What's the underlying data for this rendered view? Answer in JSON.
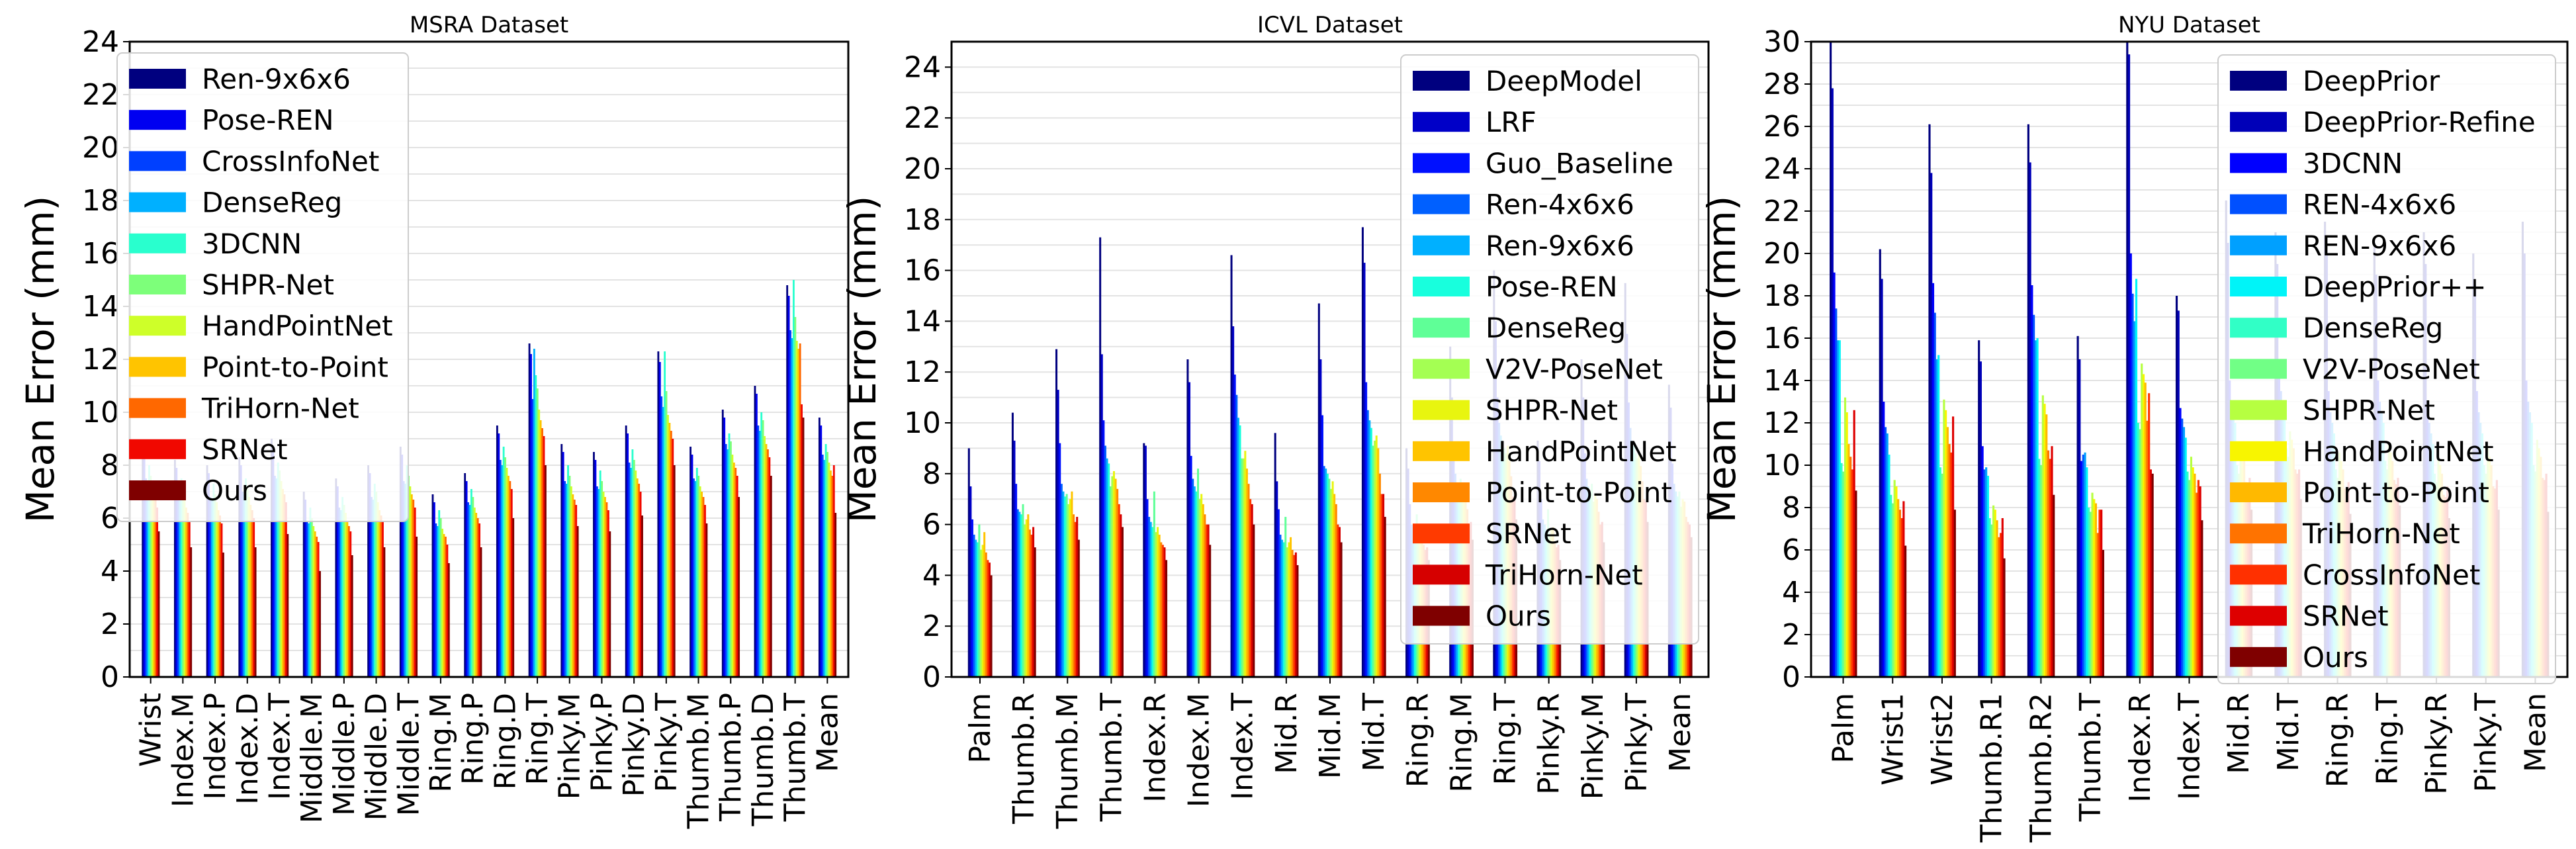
{
  "chart_data": [
    {
      "type": "bar",
      "title": "MSRA Dataset",
      "xlabel": "",
      "ylabel": "Mean Error (mm)",
      "ylim": [
        0,
        24
      ],
      "yticks": [
        0,
        2,
        4,
        6,
        8,
        10,
        12,
        14,
        16,
        18,
        20,
        22,
        24
      ],
      "grid": true,
      "legend_position": "top-left",
      "categories": [
        "Wrist",
        "Index.M",
        "Index.P",
        "Index.D",
        "Index.T",
        "Middle.M",
        "Middle.P",
        "Middle.D",
        "Middle.T",
        "Ring.M",
        "Ring.P",
        "Ring.D",
        "Ring.T",
        "Pinky.M",
        "Pinky.P",
        "Pinky.D",
        "Pinky.T",
        "Thumb.M",
        "Thumb.P",
        "Thumb.D",
        "Thumb.T",
        "Mean"
      ],
      "series": [
        {
          "name": "Ren-9x6x6",
          "color": "#00007f",
          "values": [
            8.8,
            8.2,
            8.0,
            8.3,
            9.0,
            7.0,
            7.5,
            8.0,
            8.7,
            6.9,
            7.7,
            9.5,
            12.6,
            8.8,
            8.5,
            9.5,
            12.3,
            8.7,
            10.1,
            11.0,
            14.8,
            9.8
          ]
        },
        {
          "name": "Pose-REN",
          "color": "#0000f1",
          "values": [
            8.5,
            7.9,
            7.7,
            8.0,
            8.7,
            6.7,
            7.2,
            7.7,
            8.4,
            6.6,
            7.4,
            9.2,
            12.2,
            8.5,
            8.2,
            9.2,
            11.9,
            8.4,
            9.8,
            10.7,
            14.4,
            9.5
          ]
        },
        {
          "name": "CrossInfoNet",
          "color": "#0040ff",
          "values": [
            7.5,
            7.0,
            6.8,
            7.0,
            7.6,
            5.9,
            6.4,
            6.8,
            7.4,
            5.8,
            6.6,
            8.2,
            10.5,
            7.4,
            7.2,
            8.1,
            10.6,
            7.5,
            8.8,
            9.5,
            13.1,
            8.4
          ]
        },
        {
          "name": "DenseReg",
          "color": "#00b0ff",
          "values": [
            7.3,
            6.8,
            6.7,
            6.9,
            7.5,
            5.8,
            6.3,
            6.7,
            7.3,
            5.7,
            6.5,
            8.0,
            12.4,
            7.3,
            7.1,
            7.9,
            10.2,
            7.4,
            8.6,
            9.3,
            12.8,
            8.2
          ]
        },
        {
          "name": "3DCNN",
          "color": "#29ffce",
          "values": [
            8.0,
            7.5,
            7.3,
            7.5,
            8.1,
            6.4,
            6.8,
            7.3,
            8.0,
            6.3,
            7.1,
            8.7,
            11.4,
            8.0,
            7.8,
            8.6,
            12.3,
            7.9,
            9.2,
            10.0,
            15.0,
            8.8
          ]
        },
        {
          "name": "SHPR-Net",
          "color": "#7dff7a",
          "values": [
            7.6,
            7.1,
            6.9,
            7.1,
            7.8,
            6.0,
            6.5,
            7.0,
            7.6,
            6.0,
            6.8,
            8.3,
            10.9,
            7.6,
            7.4,
            8.2,
            10.8,
            7.6,
            8.9,
            9.7,
            13.6,
            8.5
          ]
        },
        {
          "name": "HandPointNet",
          "color": "#ceff29",
          "values": [
            7.2,
            6.7,
            6.6,
            6.8,
            7.4,
            5.7,
            6.2,
            6.6,
            7.2,
            5.6,
            6.4,
            7.9,
            10.1,
            7.2,
            7.0,
            7.8,
            9.9,
            7.2,
            8.4,
            9.1,
            12.7,
            8.1
          ]
        },
        {
          "name": "Point-to-Point",
          "color": "#ffc400",
          "values": [
            6.9,
            6.4,
            6.3,
            6.5,
            7.1,
            5.5,
            5.9,
            6.3,
            6.9,
            5.4,
            6.2,
            7.6,
            9.7,
            6.9,
            6.8,
            7.5,
            9.6,
            7.0,
            8.1,
            8.8,
            12.4,
            7.8
          ]
        },
        {
          "name": "TriHorn-Net",
          "color": "#ff6800",
          "values": [
            6.7,
            6.2,
            6.1,
            6.3,
            6.9,
            5.3,
            5.7,
            6.1,
            6.7,
            5.3,
            6.0,
            7.4,
            9.4,
            6.7,
            6.6,
            7.3,
            9.3,
            6.8,
            7.9,
            8.6,
            12.6,
            7.6
          ]
        },
        {
          "name": "SRNet",
          "color": "#f10800",
          "values": [
            6.4,
            5.9,
            5.8,
            6.0,
            6.6,
            5.1,
            5.5,
            5.9,
            6.4,
            5.0,
            5.8,
            7.1,
            9.1,
            6.5,
            6.3,
            7.0,
            9.0,
            6.5,
            7.6,
            8.3,
            10.3,
            8.0
          ]
        },
        {
          "name": "Ours",
          "color": "#7f0000",
          "values": [
            5.5,
            4.9,
            4.7,
            4.9,
            5.4,
            4.0,
            4.6,
            4.9,
            5.3,
            4.3,
            4.9,
            6.0,
            8.0,
            5.7,
            5.5,
            6.1,
            8.0,
            5.8,
            6.8,
            7.6,
            9.8,
            6.2
          ]
        }
      ]
    },
    {
      "type": "bar",
      "title": "ICVL Dataset",
      "xlabel": "",
      "ylabel": "Mean Error (mm)",
      "ylim": [
        0,
        25
      ],
      "yticks": [
        0,
        2,
        4,
        6,
        8,
        10,
        12,
        14,
        16,
        18,
        20,
        22,
        24
      ],
      "grid": true,
      "legend_position": "top-right",
      "categories": [
        "Palm",
        "Thumb.R",
        "Thumb.M",
        "Thumb.T",
        "Index.R",
        "Index.M",
        "Index.T",
        "Mid.R",
        "Mid.M",
        "Mid.T",
        "Ring.R",
        "Ring.M",
        "Ring.T",
        "Pinky.R",
        "Pinky.M",
        "Pinky.T",
        "Mean"
      ],
      "series": [
        {
          "name": "DeepModel",
          "color": "#00007f",
          "values": [
            9.0,
            10.4,
            12.9,
            17.3,
            9.2,
            12.5,
            16.6,
            9.6,
            14.7,
            17.7,
            9.0,
            13.0,
            16.0,
            9.3,
            12.5,
            15.5,
            11.5
          ]
        },
        {
          "name": "LRF",
          "color": "#0000c8",
          "values": [
            7.5,
            9.3,
            11.3,
            12.7,
            9.1,
            11.6,
            13.8,
            7.7,
            12.5,
            16.3,
            8.2,
            11.0,
            14.0,
            8.5,
            11.0,
            13.5,
            10.6
          ]
        },
        {
          "name": "Guo_Baseline",
          "color": "#0010ff",
          "values": [
            6.2,
            7.6,
            9.2,
            10.1,
            7.0,
            8.7,
            11.9,
            6.6,
            10.3,
            11.6,
            6.8,
            9.0,
            11.0,
            7.0,
            8.8,
            10.8,
            8.4
          ]
        },
        {
          "name": "Ren-4x6x6",
          "color": "#0060ff",
          "values": [
            5.6,
            6.6,
            7.6,
            9.1,
            6.3,
            7.8,
            11.1,
            5.6,
            8.3,
            10.5,
            6.0,
            8.0,
            10.0,
            6.2,
            7.8,
            9.8,
            7.6
          ]
        },
        {
          "name": "Ren-9x6x6",
          "color": "#00b0ff",
          "values": [
            5.4,
            6.5,
            7.3,
            8.6,
            6.1,
            7.5,
            10.2,
            5.4,
            8.2,
            10.1,
            5.8,
            7.6,
            9.5,
            6.0,
            7.5,
            9.3,
            7.3
          ]
        },
        {
          "name": "Pose-REN",
          "color": "#18ffdd",
          "values": [
            5.3,
            6.4,
            7.1,
            8.4,
            5.9,
            7.3,
            9.9,
            5.3,
            8.0,
            9.8,
            5.6,
            7.4,
            9.3,
            5.8,
            7.3,
            9.1,
            7.1
          ]
        },
        {
          "name": "DenseReg",
          "color": "#5fff97",
          "values": [
            6.0,
            6.8,
            7.2,
            7.5,
            7.3,
            8.2,
            8.6,
            6.3,
            7.8,
            9.1,
            6.4,
            7.8,
            9.0,
            6.6,
            7.6,
            8.8,
            7.3
          ]
        },
        {
          "name": "V2V-PoseNet",
          "color": "#a4ff53",
          "values": [
            5.0,
            6.0,
            6.8,
            7.9,
            5.7,
            7.0,
            8.6,
            5.1,
            7.4,
            9.3,
            5.4,
            7.0,
            8.8,
            5.6,
            6.9,
            8.6,
            6.7
          ]
        },
        {
          "name": "SHPR-Net",
          "color": "#e8f50f",
          "values": [
            5.2,
            6.2,
            7.0,
            8.1,
            5.9,
            7.2,
            8.9,
            5.3,
            7.7,
            9.5,
            5.6,
            7.3,
            9.1,
            5.8,
            7.2,
            8.9,
            7.0
          ]
        },
        {
          "name": "HandPointNet",
          "color": "#ffc400",
          "values": [
            5.7,
            6.4,
            7.3,
            7.8,
            5.6,
            6.8,
            8.2,
            5.5,
            7.2,
            9.0,
            5.7,
            7.1,
            8.5,
            5.9,
            7.0,
            8.3,
            6.9
          ]
        },
        {
          "name": "Point-to-Point",
          "color": "#ff8800",
          "values": [
            4.9,
            5.8,
            6.4,
            7.4,
            5.3,
            6.4,
            7.6,
            5.0,
            6.8,
            8.0,
            5.2,
            6.6,
            7.9,
            5.3,
            6.5,
            7.7,
            6.3
          ]
        },
        {
          "name": "SRNet",
          "color": "#ff3a00",
          "values": [
            4.6,
            5.6,
            6.1,
            6.8,
            5.2,
            6.0,
            7.0,
            4.8,
            6.0,
            7.2,
            5.0,
            6.0,
            7.1,
            5.1,
            6.0,
            7.0,
            6.1
          ]
        },
        {
          "name": "TriHorn-Net",
          "color": "#d60000",
          "values": [
            4.5,
            5.9,
            6.3,
            6.4,
            5.1,
            6.0,
            6.8,
            4.9,
            5.9,
            7.2,
            5.1,
            6.1,
            7.0,
            5.2,
            6.1,
            6.9,
            6.0
          ]
        },
        {
          "name": "Ours",
          "color": "#7f0000",
          "values": [
            4.0,
            5.1,
            5.4,
            5.9,
            4.6,
            5.2,
            6.0,
            4.4,
            5.3,
            6.3,
            4.6,
            5.4,
            6.2,
            4.6,
            5.3,
            6.1,
            5.5
          ]
        }
      ]
    },
    {
      "type": "bar",
      "title": "NYU Dataset",
      "xlabel": "",
      "ylabel": "Mean Error (mm)",
      "ylim": [
        0,
        30
      ],
      "yticks": [
        0,
        2,
        4,
        6,
        8,
        10,
        12,
        14,
        16,
        18,
        20,
        22,
        24,
        26,
        28,
        30
      ],
      "grid": true,
      "legend_position": "top-right",
      "categories": [
        "Palm",
        "Wrist1",
        "Wrist2",
        "Thumb.R1",
        "Thumb.R2",
        "Thumb.T",
        "Index.R",
        "Index.T",
        "Mid.R",
        "Mid.T",
        "Ring.R",
        "Ring.T",
        "Pinky.R",
        "Pinky.T",
        "Mean"
      ],
      "series": [
        {
          "name": "DeepPrior",
          "color": "#00007f",
          "values": [
            30.0,
            20.2,
            26.1,
            15.9,
            26.1,
            16.1,
            30.0,
            18.0,
            22.5,
            21.0,
            21.5,
            20.5,
            21.0,
            20.0,
            21.5
          ]
        },
        {
          "name": "DeepPrior-Refine",
          "color": "#0000b8",
          "values": [
            27.8,
            18.8,
            23.8,
            14.9,
            24.3,
            15.0,
            29.4,
            17.3,
            20.5,
            19.5,
            20.0,
            19.0,
            19.5,
            18.5,
            20.0
          ]
        },
        {
          "name": "3DCNN",
          "color": "#0000ff",
          "values": [
            19.1,
            13.0,
            18.6,
            10.9,
            18.5,
            10.2,
            20.0,
            12.7,
            14.0,
            14.5,
            13.5,
            14.0,
            13.0,
            13.5,
            14.0
          ]
        },
        {
          "name": "REN-4x6x6",
          "color": "#0050ff",
          "values": [
            17.4,
            11.8,
            17.2,
            9.8,
            17.1,
            10.5,
            18.1,
            12.2,
            13.0,
            13.5,
            12.5,
            13.0,
            12.0,
            12.5,
            13.0
          ]
        },
        {
          "name": "REN-9x6x6",
          "color": "#00a0ff",
          "values": [
            15.9,
            11.5,
            15.0,
            9.9,
            15.9,
            10.6,
            16.8,
            11.8,
            12.5,
            13.0,
            12.0,
            12.5,
            11.5,
            12.0,
            12.5
          ]
        },
        {
          "name": "DeepPrior++",
          "color": "#00f4f8",
          "values": [
            15.9,
            10.5,
            15.2,
            9.5,
            16.0,
            9.9,
            18.8,
            11.3,
            12.0,
            12.5,
            11.5,
            12.0,
            11.0,
            11.5,
            12.0
          ]
        },
        {
          "name": "DenseReg",
          "color": "#31ffc6",
          "values": [
            10.1,
            8.6,
            9.9,
            7.5,
            10.3,
            8.0,
            12.0,
            9.7,
            10.0,
            10.8,
            9.8,
            10.2,
            9.6,
            10.0,
            10.0
          ]
        },
        {
          "name": "V2V-PoseNet",
          "color": "#71ff86",
          "values": [
            9.7,
            8.2,
            9.6,
            7.2,
            10.0,
            7.8,
            11.7,
            9.3,
            9.6,
            10.4,
            9.4,
            9.8,
            9.2,
            9.6,
            9.7
          ]
        },
        {
          "name": "SHPR-Net",
          "color": "#b6ff41",
          "values": [
            13.2,
            9.3,
            13.1,
            8.1,
            13.3,
            8.7,
            14.8,
            10.4,
            11.0,
            11.6,
            10.6,
            11.0,
            10.4,
            10.8,
            11.2
          ]
        },
        {
          "name": "HandPointNet",
          "color": "#f8f500",
          "values": [
            12.5,
            9.0,
            12.6,
            7.9,
            12.9,
            8.4,
            14.3,
            9.9,
            10.6,
            11.2,
            10.2,
            10.6,
            10.0,
            10.4,
            10.8
          ]
        },
        {
          "name": "Point-to-Point",
          "color": "#ffb900",
          "values": [
            11.0,
            8.4,
            11.8,
            7.4,
            12.4,
            8.2,
            13.9,
            9.6,
            10.2,
            10.8,
            9.8,
            10.2,
            9.6,
            10.0,
            10.4
          ]
        },
        {
          "name": "TriHorn-Net",
          "color": "#ff7300",
          "values": [
            10.4,
            7.9,
            11.0,
            6.6,
            10.7,
            6.8,
            12.1,
            8.7,
            9.2,
            9.8,
            8.9,
            9.3,
            8.6,
            9.0,
            9.4
          ]
        },
        {
          "name": "CrossInfoNet",
          "color": "#ff3000",
          "values": [
            9.8,
            7.5,
            10.6,
            6.8,
            10.3,
            7.9,
            13.4,
            9.3,
            9.0,
            9.6,
            8.7,
            9.1,
            8.5,
            8.9,
            9.3
          ]
        },
        {
          "name": "SRNet",
          "color": "#de0000",
          "values": [
            12.6,
            8.3,
            12.3,
            7.5,
            10.9,
            7.9,
            9.8,
            9.0,
            9.4,
            9.8,
            9.2,
            9.4,
            9.0,
            9.3,
            9.6
          ]
        },
        {
          "name": "Ours",
          "color": "#7f0000",
          "values": [
            8.8,
            6.2,
            7.9,
            5.6,
            8.6,
            6.0,
            9.6,
            7.4,
            7.9,
            8.4,
            7.7,
            8.1,
            7.5,
            7.9,
            7.8
          ]
        }
      ]
    }
  ]
}
